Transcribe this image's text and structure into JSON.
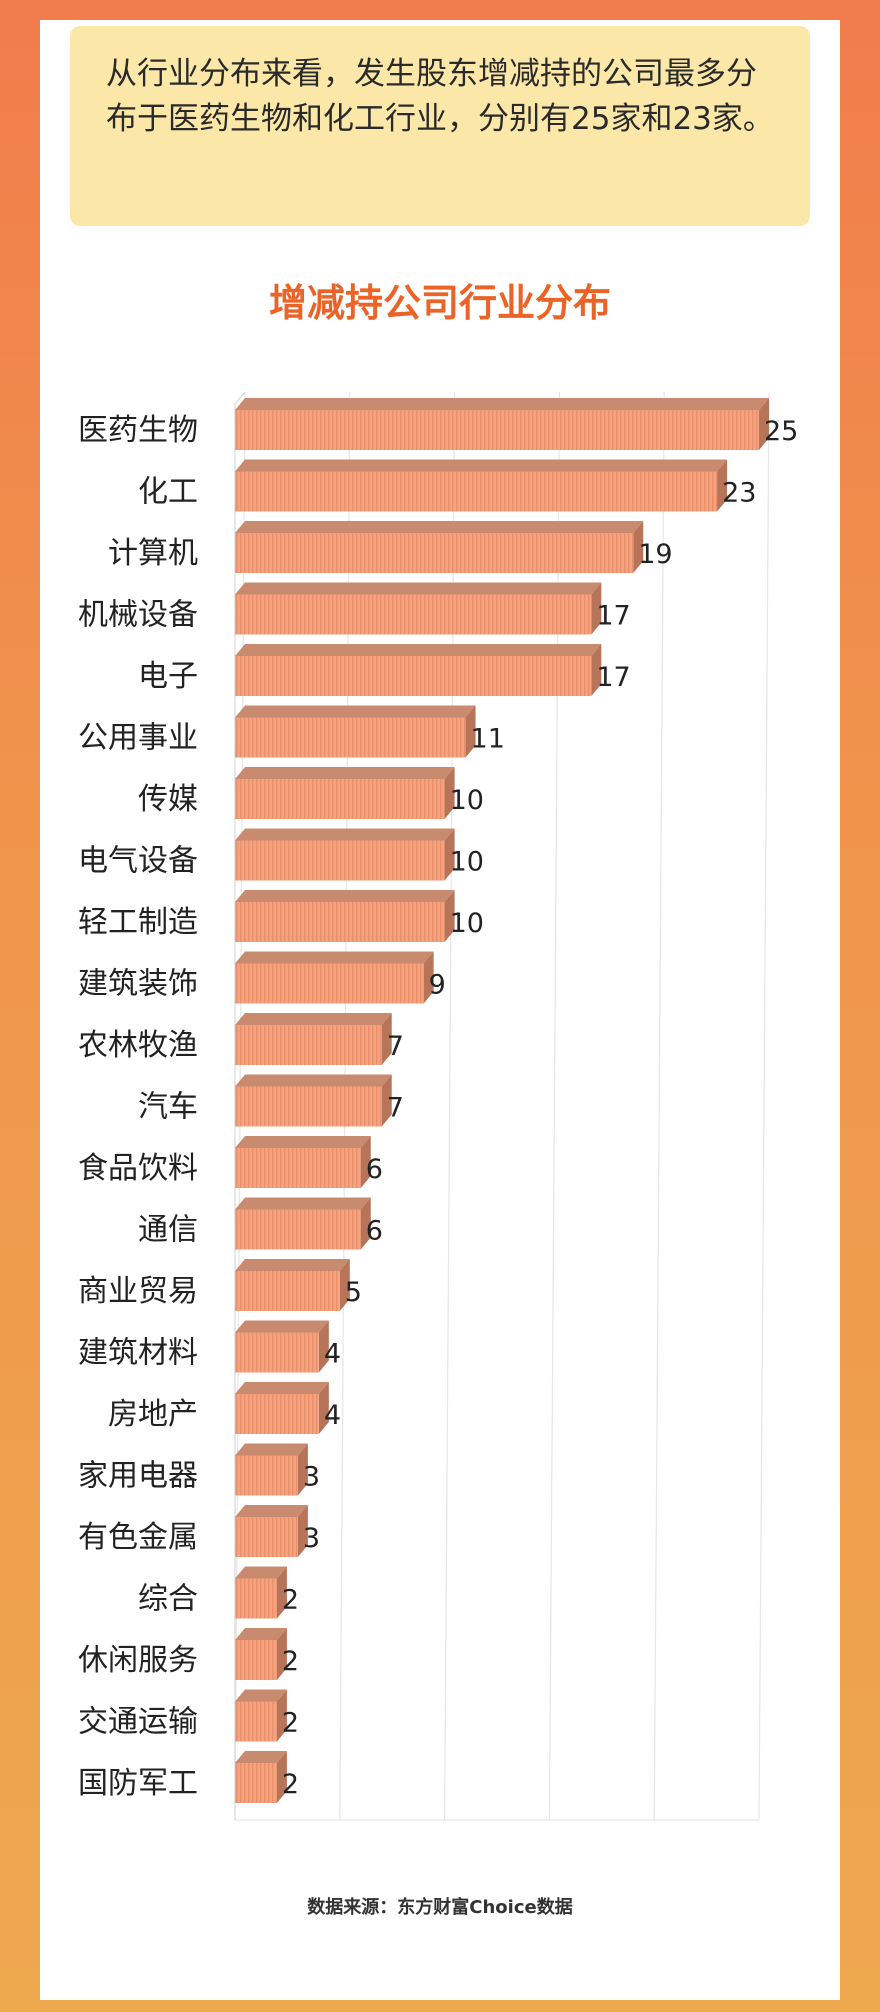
{
  "intro_text": "从行业分布来看，发生股东增减持的公司最多分布于医药生物和化工行业，分别有25家和23家。",
  "colors": {
    "bar_front": "#f5a27d",
    "bar_top": "#c98b70",
    "bar_side": "#b87458",
    "title": "#ec6328"
  },
  "chart_data": {
    "type": "bar",
    "orientation": "horizontal",
    "title": "增减持公司行业分布",
    "categories": [
      "医药生物",
      "化工",
      "计算机",
      "机械设备",
      "电子",
      "公用事业",
      "传媒",
      "电气设备",
      "轻工制造",
      "建筑装饰",
      "农林牧渔",
      "汽车",
      "食品饮料",
      "通信",
      "商业贸易",
      "建筑材料",
      "房地产",
      "家用电器",
      "有色金属",
      "综合",
      "休闲服务",
      "交通运输",
      "国防军工"
    ],
    "values": [
      25,
      23,
      19,
      17,
      17,
      11,
      10,
      10,
      10,
      9,
      7,
      7,
      6,
      6,
      5,
      4,
      4,
      3,
      3,
      2,
      2,
      2,
      2
    ],
    "xlim": [
      0,
      25
    ],
    "data_labels": true,
    "grid": true,
    "style": "3d"
  },
  "source": "数据来源：东方财富Choice数据"
}
